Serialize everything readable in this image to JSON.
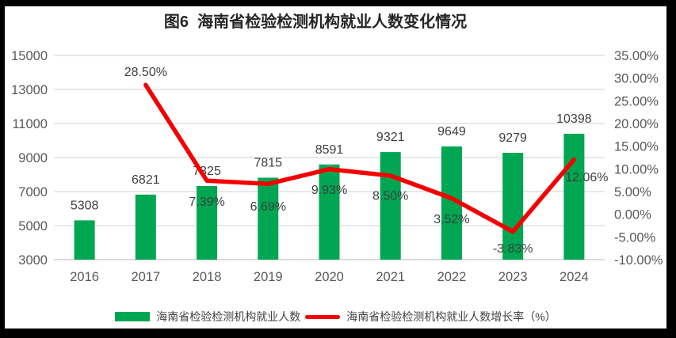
{
  "figure": {
    "frame_color": "#000000",
    "background": "#FFFFFF"
  },
  "chart_data": {
    "type": "combo-bar-line",
    "title": "图6  海南省检验检测机构就业人数变化情况",
    "categories": [
      "2016",
      "2017",
      "2018",
      "2019",
      "2020",
      "2021",
      "2022",
      "2023",
      "2024"
    ],
    "series": [
      {
        "name": "海南省检验检测机构就业人数",
        "type": "bar",
        "axis": "left",
        "color": "#00A651",
        "values": [
          5308,
          6821,
          7325,
          7815,
          8591,
          9321,
          9649,
          9279,
          10398
        ],
        "labels": [
          "5308",
          "6821",
          "7325",
          "7815",
          "8591",
          "9321",
          "9649",
          "9279",
          "10398"
        ]
      },
      {
        "name": "海南省检验检测机构就业人数增长率（%）",
        "type": "line",
        "axis": "right",
        "color": "#F40000",
        "values": [
          null,
          28.5,
          7.39,
          6.69,
          9.93,
          8.5,
          3.52,
          -3.83,
          12.06
        ],
        "labels": [
          null,
          "28.50%",
          "7.39%",
          "6.69%",
          "9.93%",
          "8.50%",
          "3.52%",
          "-3.83%",
          "12.06%"
        ]
      }
    ],
    "left_axis": {
      "min": 3000,
      "max": 15000,
      "step": 2000,
      "ticks": [
        "15000",
        "13000",
        "11000",
        "9000",
        "7000",
        "5000",
        "3000"
      ]
    },
    "right_axis": {
      "min": -10,
      "max": 35,
      "step": 5,
      "ticks": [
        "35.00%",
        "30.00%",
        "25.00%",
        "20.00%",
        "15.00%",
        "10.00%",
        "5.00%",
        "0.00%",
        "-5.00%",
        "-10.00%"
      ]
    },
    "grid": true,
    "legend_position": "bottom",
    "colors": {
      "grid": "#D9D9D9",
      "baseline": "#C6C6C6",
      "axis_text": "#595959",
      "data_label": "#3F3F3F",
      "title": "#262626"
    }
  }
}
